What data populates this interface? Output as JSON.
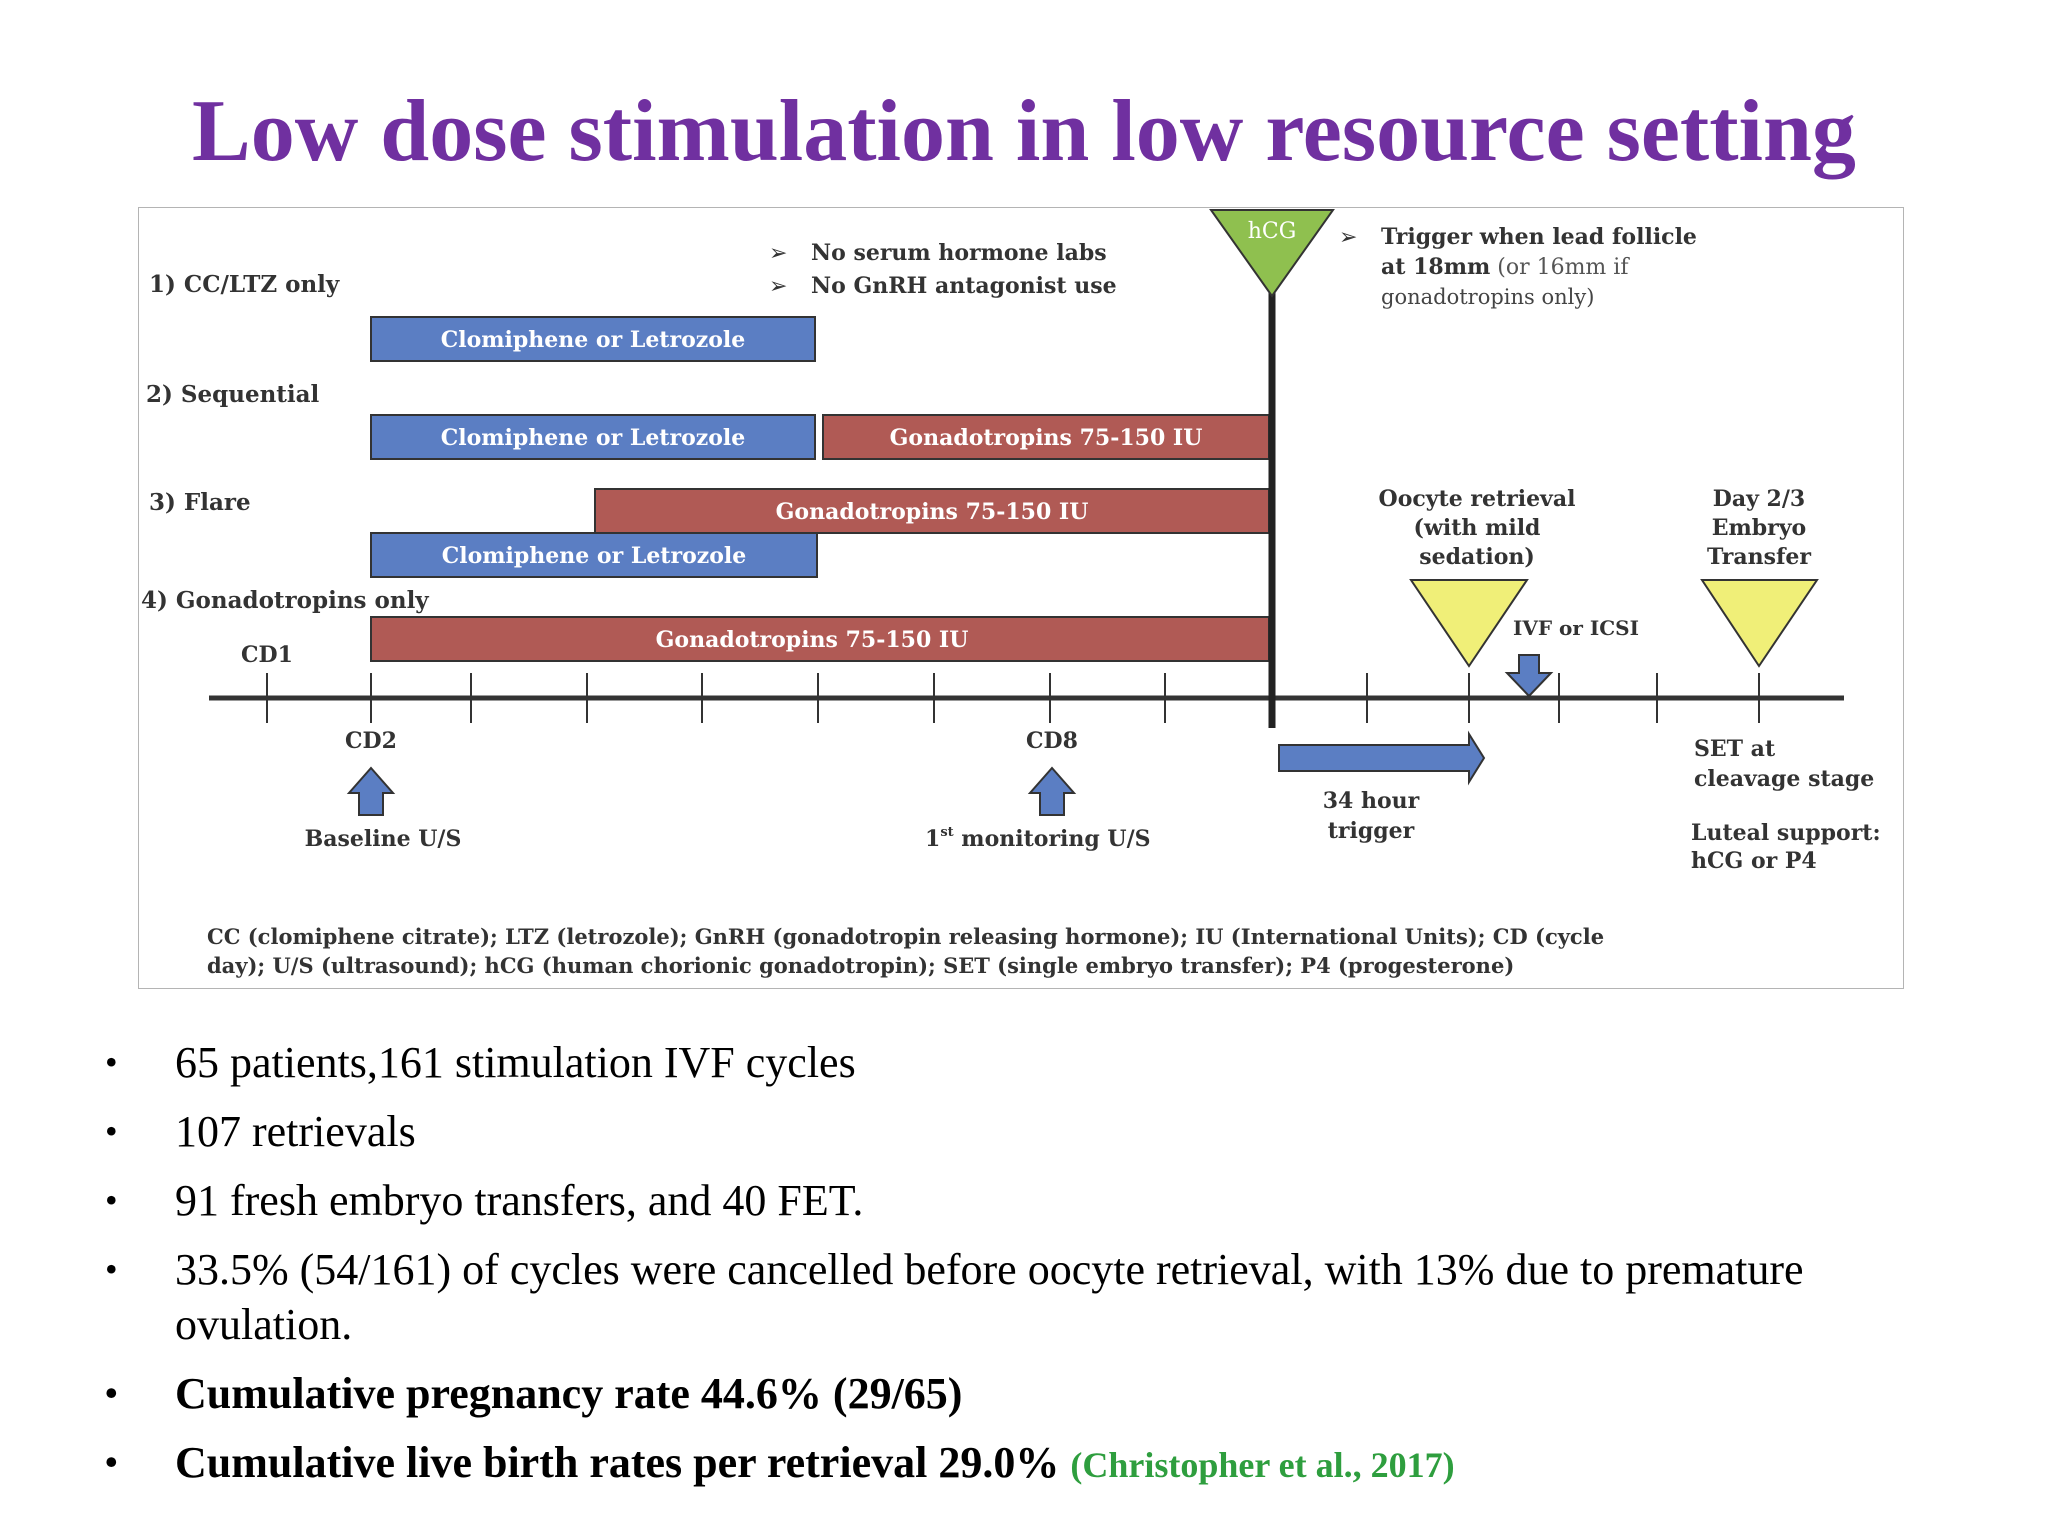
{
  "title": "Low dose stimulation in low resource setting",
  "diagram": {
    "notes": [
      "No serum hormone labs",
      "No GnRH antagonist use"
    ],
    "protocols": [
      "1) CC/LTZ only",
      "2) Sequential",
      "3) Flare",
      "4) Gonadotropins only"
    ],
    "bars": {
      "clomiphene": "Clomiphene or Letrozole",
      "gonadotropins": "Gonadotropins 75-150 IU"
    },
    "hcg": "hCG",
    "trigger": {
      "line1": "Trigger when lead follicle",
      "line2_bold": "at 18mm",
      "line2_rest": " (or 16mm if",
      "line3": "gonadotropins only)"
    },
    "cd1": "CD1",
    "cd2": "CD2",
    "cd8": "CD8",
    "baseline": "Baseline U/S",
    "monitoring_num": "1",
    "monitoring_sup": "st",
    "monitoring_rest": " monitoring U/S",
    "oocyte": [
      "Oocyte retrieval",
      "(with mild",
      "sedation)"
    ],
    "ivf": "IVF or ICSI",
    "transfer": [
      "Day 2/3",
      "Embryo",
      "Transfer"
    ],
    "trigger_time": [
      "34 hour",
      "trigger"
    ],
    "set": [
      "SET at",
      "cleavage stage"
    ],
    "luteal": [
      "Luteal support:",
      "hCG or P4"
    ],
    "footnote": [
      "CC (clomiphene citrate); LTZ (letrozole); GnRH (gonadotropin releasing hormone); IU (International Units); CD (cycle",
      "day); U/S (ultrasound); hCG (human chorionic gonadotropin); SET (single embryo transfer); P4 (progesterone)"
    ],
    "colors": {
      "blue_bar": "#5b7ec3",
      "red_bar": "#b05a55",
      "green_triangle": "#8fc04f",
      "yellow_triangle": "#f0ef78",
      "arrow_blue": "#5b7ec3"
    }
  },
  "bullets": [
    "65 patients,161 stimulation IVF cycles",
    "107 retrievals",
    "91 fresh embryo transfers, and 40 FET.",
    "33.5% (54/161) of cycles were cancelled before oocyte retrieval, with 13% due to premature ovulation.",
    "Cumulative pregnancy rate 44.6% (29/65)",
    "Cumulative live birth rates per retrieval 29.0%"
  ],
  "citation": "(Christopher et al., 2017)"
}
